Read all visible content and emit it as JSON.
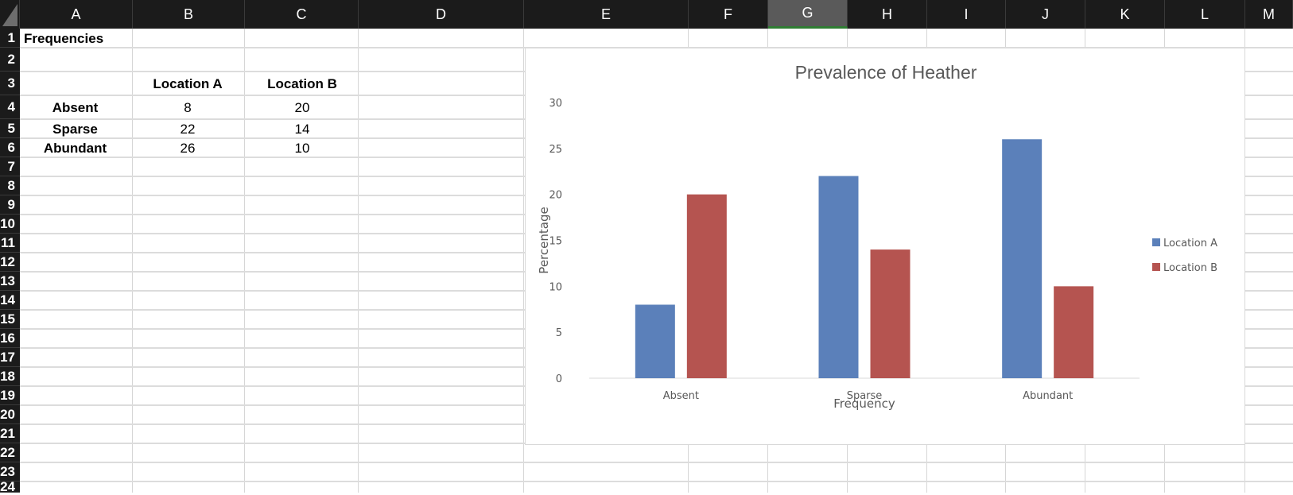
{
  "columns": [
    "A",
    "B",
    "C",
    "D",
    "E",
    "F",
    "G",
    "H",
    "I",
    "J",
    "K",
    "L",
    "M"
  ],
  "selected_column": "G",
  "rows": [
    "1",
    "2",
    "3",
    "4",
    "5",
    "6",
    "7",
    "8",
    "9",
    "10",
    "11",
    "12",
    "13",
    "14",
    "15",
    "16",
    "17",
    "18",
    "19",
    "20",
    "21",
    "22",
    "23",
    "24"
  ],
  "cells": {
    "a1": "Frequencies",
    "b3": "Location A",
    "c3": "Location B",
    "a4": "Absent",
    "b4": "8",
    "c4": "20",
    "a5": "Sparse",
    "b5": "22",
    "c5": "14",
    "a6": "Abundant",
    "b6": "26",
    "c6": "10"
  },
  "chart_data": {
    "type": "bar",
    "title": "Prevalence of Heather",
    "xlabel": "Frequency",
    "ylabel": "Percentage",
    "categories": [
      "Absent",
      "Sparse",
      "Abundant"
    ],
    "series": [
      {
        "name": "Location A",
        "values": [
          8,
          22,
          26
        ],
        "color": "#5b80ba"
      },
      {
        "name": "Location B",
        "values": [
          20,
          14,
          10
        ],
        "color": "#b55450"
      }
    ],
    "ylim": [
      0,
      30
    ],
    "yticks": [
      0,
      5,
      10,
      15,
      20,
      25,
      30
    ],
    "grid": false,
    "legend_position": "right"
  }
}
